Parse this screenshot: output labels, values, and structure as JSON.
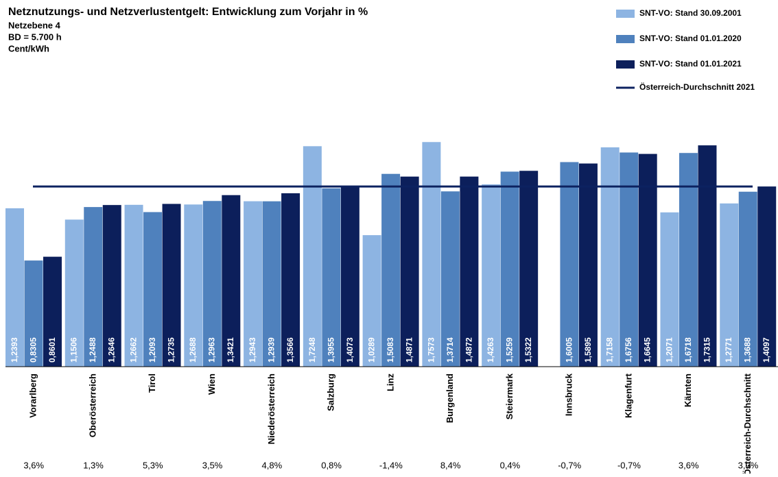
{
  "chart_data": {
    "type": "bar",
    "title": "Netznutzungs- und Netzverlustentgelt: Entwicklung zum Vorjahr in %",
    "subtitle": [
      "Netzebene 4",
      "BD = 5.700 h",
      "Cent/kWh"
    ],
    "categories": [
      "Vorarlberg",
      "Oberösterreich",
      "Tirol",
      "Wien",
      "Niederösterreich",
      "Salzburg",
      "Linz",
      "Burgenland",
      "Steiermark",
      "Innsbruck",
      "Klagenfurt",
      "Kärnten",
      "Österreich-Durchschnitt"
    ],
    "series": [
      {
        "name": "SNT-VO: Stand 30.09.2001",
        "color": "#8db4e2",
        "values": [
          1.2393,
          1.1506,
          1.2662,
          1.2688,
          1.2943,
          1.7248,
          1.0289,
          1.7573,
          1.4263,
          null,
          1.7158,
          1.2071,
          1.2771
        ],
        "value_labels": [
          "1,2393",
          "1,1506",
          "1,2662",
          "1,2688",
          "1,2943",
          "1,7248",
          "1,0289",
          "1,7573",
          "1,4263",
          null,
          "1,7158",
          "1,2071",
          "1,2771"
        ]
      },
      {
        "name": "SNT-VO: Stand 01.01.2020",
        "color": "#4f81bd",
        "values": [
          0.8305,
          1.2488,
          1.2093,
          1.2963,
          1.2939,
          1.3955,
          1.5083,
          1.3714,
          1.5259,
          1.6005,
          1.6756,
          1.6718,
          1.3688
        ],
        "value_labels": [
          "0,8305",
          "1,2488",
          "1,2093",
          "1,2963",
          "1,2939",
          "1,3955",
          "1,5083",
          "1,3714",
          "1,5259",
          "1,6005",
          "1,6756",
          "1,6718",
          "1,3688"
        ]
      },
      {
        "name": "SNT-VO: Stand 01.01.2021",
        "color": "#0c1f5b",
        "values": [
          0.8601,
          1.2646,
          1.2735,
          1.3421,
          1.3566,
          1.4073,
          1.4871,
          1.4872,
          1.5322,
          1.5895,
          1.6645,
          1.7315,
          1.4097
        ],
        "value_labels": [
          "0,8601",
          "1,2646",
          "1,2735",
          "1,3421",
          "1,3566",
          "1,4073",
          "1,4871",
          "1,4872",
          "1,5322",
          "1,5895",
          "1,6645",
          "1,7315",
          "1,4097"
        ]
      }
    ],
    "reference_line": {
      "name": "Österreich-Durchschnitt 2021",
      "value": 1.4097,
      "color": "#0c2260"
    },
    "change_labels": [
      "3,6%",
      "1,3%",
      "5,3%",
      "3,5%",
      "4,8%",
      "0,8%",
      "-1,4%",
      "8,4%",
      "0,4%",
      "-0,7%",
      "-0,7%",
      "3,6%",
      "3,0%"
    ],
    "ylim": [
      0,
      2
    ]
  }
}
